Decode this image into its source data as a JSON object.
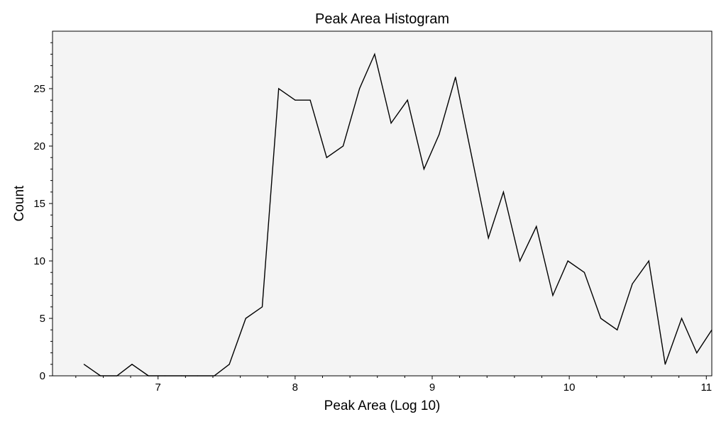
{
  "chart_data": {
    "type": "line",
    "title": "Peak Area Histogram",
    "xlabel": "Peak Area (Log 10)",
    "ylabel": "Count",
    "xlim": [
      6.23,
      11.04
    ],
    "ylim": [
      0,
      30
    ],
    "grid": false,
    "plot_background": "#f4f4f4",
    "line_color": "#000000",
    "x_ticks": [
      7,
      8,
      9,
      10,
      11
    ],
    "y_ticks": [
      0,
      5,
      10,
      15,
      20,
      25
    ],
    "x_tick_labels": [
      "7",
      "8",
      "9",
      "10",
      "11"
    ],
    "y_tick_labels": [
      "0",
      "5",
      "10",
      "15",
      "20",
      "25"
    ],
    "x_minor_step": 0.2,
    "y_minor_step": 1,
    "series": [
      {
        "x": [
          6.46,
          6.58,
          6.7,
          6.81,
          6.93,
          7.05,
          7.17,
          7.29,
          7.41,
          7.52,
          7.64,
          7.76,
          7.88,
          8.0,
          8.11,
          8.23,
          8.35,
          8.47,
          8.58,
          8.7,
          8.82,
          8.94,
          9.05,
          9.17,
          9.29,
          9.41,
          9.52,
          9.64,
          9.76,
          9.88,
          9.99,
          10.11,
          10.23,
          10.35,
          10.46,
          10.58,
          10.7,
          10.82,
          10.93,
          11.04
        ],
        "values": [
          1,
          0,
          0,
          1,
          0,
          0,
          0,
          0,
          0,
          1,
          5,
          6,
          25,
          24,
          24,
          19,
          20,
          25,
          28,
          22,
          24,
          18,
          21,
          26,
          19,
          12,
          16,
          10,
          13,
          7,
          10,
          9,
          5,
          4,
          8,
          10,
          1,
          5,
          2,
          4
        ]
      }
    ]
  }
}
